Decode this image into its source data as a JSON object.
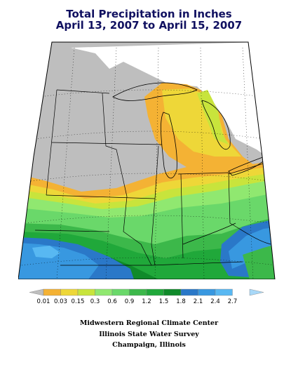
{
  "title": {
    "line1": "Total Precipitation in Inches",
    "line2": "April 13, 2007 to April 15, 2007"
  },
  "legend": {
    "labels": [
      "0.01",
      "0.03",
      "0.15",
      "0.3",
      "0.6",
      "0.9",
      "1.2",
      "1.5",
      "1.8",
      "2.1",
      "2.4",
      "2.7"
    ],
    "colors": [
      "#bebebe",
      "#f4b234",
      "#eed738",
      "#c8e43c",
      "#90e870",
      "#6ad86a",
      "#3cb84a",
      "#20a83a",
      "#108a2a",
      "#2a78c8",
      "#3898e0",
      "#58b8f2",
      "#a8d8f8"
    ]
  },
  "colors": {
    "no_data": "#bebebe",
    "border": "#000000",
    "title": "#101060"
  },
  "credits": {
    "line1": "Midwestern Regional Climate Center",
    "line2": "Illinois State Water Survey",
    "line3": "Champaign, Illinois"
  }
}
